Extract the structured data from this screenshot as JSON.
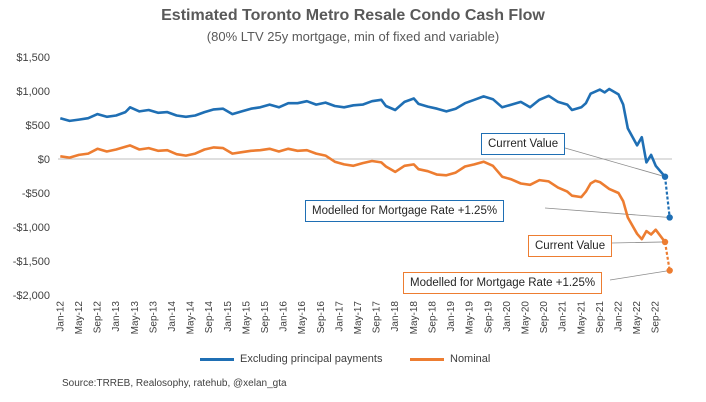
{
  "chart_data": {
    "type": "line",
    "title": "Estimated Toronto Metro Resale Condo Cash Flow",
    "subtitle": "(80% LTV 25y mortgage, min of fixed and variable)",
    "source": "Source:TRREB, Realosophy, ratehub, @xelan_gta",
    "xlabel": "",
    "ylabel": "",
    "ylim": [
      -2000,
      1500
    ],
    "y_ticks": [
      1500,
      1000,
      500,
      0,
      -500,
      -1000,
      -1500,
      -2000
    ],
    "y_tick_labels": [
      "$1,500",
      "$1,000",
      "$500",
      "$0",
      "-$500",
      "-$1,000",
      "-$1,500",
      "-$2,000"
    ],
    "x_start": "2012-01",
    "x_end": "2022-12",
    "x_tick_labels": [
      "Jan-12",
      "May-12",
      "Sep-12",
      "Jan-13",
      "May-13",
      "Sep-13",
      "Jan-14",
      "May-14",
      "Sep-14",
      "Jan-15",
      "May-15",
      "Sep-15",
      "Jan-16",
      "May-16",
      "Sep-16",
      "Jan-17",
      "May-17",
      "Sep-17",
      "Jan-18",
      "May-18",
      "Sep-18",
      "Jan-19",
      "May-19",
      "Sep-19",
      "Jan-20",
      "May-20",
      "Sep-20",
      "Jan-21",
      "May-21",
      "Sep-21",
      "Jan-22",
      "May-22",
      "Sep-22"
    ],
    "legend_position": "bottom",
    "grid": false,
    "series": [
      {
        "name": "Excluding principal payments",
        "color": "#1f6fb4",
        "points": [
          [
            "2012-01",
            600
          ],
          [
            "2012-03",
            560
          ],
          [
            "2012-05",
            580
          ],
          [
            "2012-07",
            600
          ],
          [
            "2012-09",
            660
          ],
          [
            "2012-11",
            620
          ],
          [
            "2013-01",
            640
          ],
          [
            "2013-03",
            690
          ],
          [
            "2013-04",
            760
          ],
          [
            "2013-06",
            700
          ],
          [
            "2013-08",
            720
          ],
          [
            "2013-10",
            680
          ],
          [
            "2013-12",
            690
          ],
          [
            "2014-02",
            640
          ],
          [
            "2014-04",
            620
          ],
          [
            "2014-06",
            640
          ],
          [
            "2014-08",
            690
          ],
          [
            "2014-10",
            730
          ],
          [
            "2014-12",
            740
          ],
          [
            "2015-02",
            660
          ],
          [
            "2015-04",
            700
          ],
          [
            "2015-06",
            740
          ],
          [
            "2015-08",
            760
          ],
          [
            "2015-10",
            800
          ],
          [
            "2015-12",
            760
          ],
          [
            "2016-02",
            820
          ],
          [
            "2016-04",
            820
          ],
          [
            "2016-06",
            850
          ],
          [
            "2016-08",
            800
          ],
          [
            "2016-10",
            830
          ],
          [
            "2016-12",
            780
          ],
          [
            "2017-02",
            760
          ],
          [
            "2017-04",
            790
          ],
          [
            "2017-06",
            800
          ],
          [
            "2017-08",
            850
          ],
          [
            "2017-10",
            870
          ],
          [
            "2017-11",
            780
          ],
          [
            "2018-01",
            720
          ],
          [
            "2018-03",
            840
          ],
          [
            "2018-05",
            890
          ],
          [
            "2018-06",
            810
          ],
          [
            "2018-08",
            770
          ],
          [
            "2018-10",
            740
          ],
          [
            "2018-12",
            700
          ],
          [
            "2019-02",
            740
          ],
          [
            "2019-04",
            820
          ],
          [
            "2019-06",
            870
          ],
          [
            "2019-08",
            920
          ],
          [
            "2019-10",
            880
          ],
          [
            "2019-12",
            760
          ],
          [
            "2020-02",
            800
          ],
          [
            "2020-04",
            840
          ],
          [
            "2020-06",
            760
          ],
          [
            "2020-08",
            870
          ],
          [
            "2020-10",
            930
          ],
          [
            "2020-12",
            840
          ],
          [
            "2021-02",
            800
          ],
          [
            "2021-03",
            720
          ],
          [
            "2021-05",
            760
          ],
          [
            "2021-06",
            820
          ],
          [
            "2021-07",
            960
          ],
          [
            "2021-09",
            1020
          ],
          [
            "2021-10",
            980
          ],
          [
            "2021-11",
            1030
          ],
          [
            "2022-01",
            950
          ],
          [
            "2022-02",
            800
          ],
          [
            "2022-03",
            450
          ],
          [
            "2022-05",
            200
          ],
          [
            "2022-06",
            320
          ],
          [
            "2022-07",
            -50
          ],
          [
            "2022-08",
            60
          ],
          [
            "2022-09",
            -100
          ],
          [
            "2022-11",
            -260
          ]
        ]
      },
      {
        "name": "Nominal",
        "color": "#ed7d31",
        "points": [
          [
            "2012-01",
            40
          ],
          [
            "2012-03",
            20
          ],
          [
            "2012-05",
            60
          ],
          [
            "2012-07",
            80
          ],
          [
            "2012-09",
            150
          ],
          [
            "2012-11",
            110
          ],
          [
            "2013-01",
            140
          ],
          [
            "2013-03",
            180
          ],
          [
            "2013-04",
            200
          ],
          [
            "2013-06",
            140
          ],
          [
            "2013-08",
            160
          ],
          [
            "2013-10",
            120
          ],
          [
            "2013-12",
            130
          ],
          [
            "2014-02",
            70
          ],
          [
            "2014-04",
            50
          ],
          [
            "2014-06",
            80
          ],
          [
            "2014-08",
            140
          ],
          [
            "2014-10",
            170
          ],
          [
            "2014-12",
            160
          ],
          [
            "2015-02",
            80
          ],
          [
            "2015-04",
            100
          ],
          [
            "2015-06",
            120
          ],
          [
            "2015-08",
            130
          ],
          [
            "2015-10",
            150
          ],
          [
            "2015-12",
            110
          ],
          [
            "2016-02",
            150
          ],
          [
            "2016-04",
            120
          ],
          [
            "2016-06",
            130
          ],
          [
            "2016-08",
            80
          ],
          [
            "2016-10",
            50
          ],
          [
            "2016-12",
            -40
          ],
          [
            "2017-02",
            -80
          ],
          [
            "2017-04",
            -100
          ],
          [
            "2017-06",
            -60
          ],
          [
            "2017-08",
            -30
          ],
          [
            "2017-10",
            -50
          ],
          [
            "2017-11",
            -110
          ],
          [
            "2018-01",
            -190
          ],
          [
            "2018-03",
            -100
          ],
          [
            "2018-05",
            -80
          ],
          [
            "2018-06",
            -150
          ],
          [
            "2018-08",
            -180
          ],
          [
            "2018-10",
            -230
          ],
          [
            "2018-12",
            -240
          ],
          [
            "2019-02",
            -200
          ],
          [
            "2019-04",
            -110
          ],
          [
            "2019-06",
            -80
          ],
          [
            "2019-08",
            -40
          ],
          [
            "2019-10",
            -100
          ],
          [
            "2019-12",
            -260
          ],
          [
            "2020-02",
            -300
          ],
          [
            "2020-04",
            -360
          ],
          [
            "2020-06",
            -380
          ],
          [
            "2020-08",
            -310
          ],
          [
            "2020-10",
            -330
          ],
          [
            "2020-12",
            -420
          ],
          [
            "2021-02",
            -480
          ],
          [
            "2021-03",
            -540
          ],
          [
            "2021-05",
            -560
          ],
          [
            "2021-06",
            -480
          ],
          [
            "2021-07",
            -360
          ],
          [
            "2021-08",
            -320
          ],
          [
            "2021-09",
            -340
          ],
          [
            "2021-11",
            -440
          ],
          [
            "2022-01",
            -500
          ],
          [
            "2022-02",
            -620
          ],
          [
            "2022-03",
            -860
          ],
          [
            "2022-05",
            -1100
          ],
          [
            "2022-06",
            -1180
          ],
          [
            "2022-07",
            -1060
          ],
          [
            "2022-08",
            -1110
          ],
          [
            "2022-09",
            -1040
          ],
          [
            "2022-11",
            -1220
          ]
        ]
      }
    ],
    "projections": [
      {
        "series": "Excluding principal payments",
        "from": [
          "2022-11",
          -260
        ],
        "to": [
          "2022-12",
          -860
        ],
        "color": "#1f6fb4"
      },
      {
        "series": "Nominal",
        "from": [
          "2022-11",
          -1220
        ],
        "to": [
          "2022-12",
          -1640
        ],
        "color": "#ed7d31"
      }
    ],
    "annotations": [
      {
        "text": "Current Value",
        "series": "Excluding principal payments",
        "target": [
          "2022-11",
          -260
        ],
        "color": "#1f6fb4"
      },
      {
        "text": "Modelled for Mortgage Rate +1.25%",
        "series": "Excluding principal payments",
        "target": [
          "2022-12",
          -860
        ],
        "color": "#1f6fb4"
      },
      {
        "text": "Current Value",
        "series": "Nominal",
        "target": [
          "2022-11",
          -1220
        ],
        "color": "#ed7d31"
      },
      {
        "text": "Modelled for Mortgage Rate +1.25%",
        "series": "Nominal",
        "target": [
          "2022-12",
          -1640
        ],
        "color": "#ed7d31"
      }
    ]
  }
}
